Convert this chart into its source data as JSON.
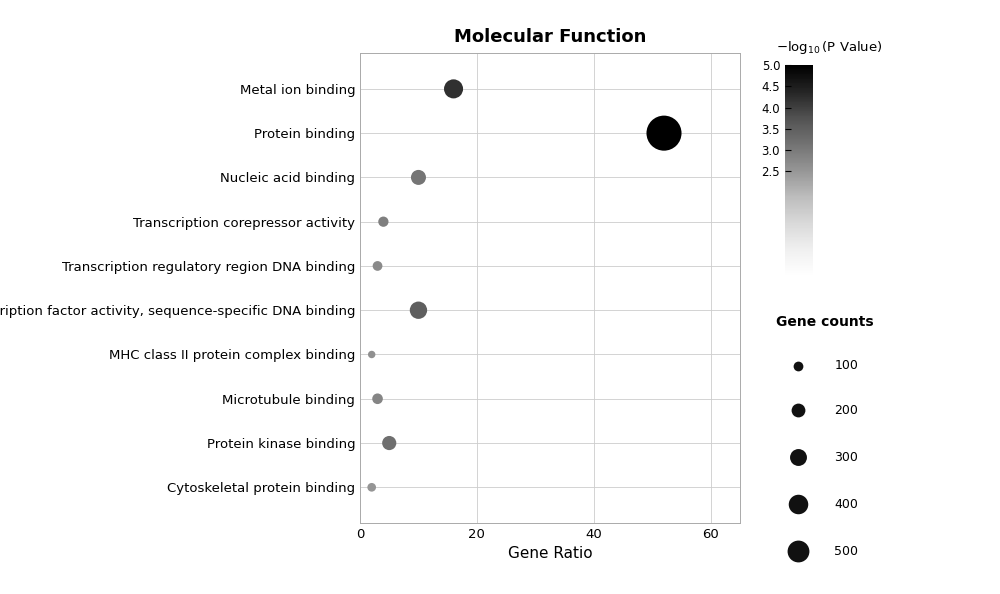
{
  "title": "Molecular Function",
  "xlabel": "Gene Ratio",
  "categories": [
    "Cytoskeletal protein binding",
    "Protein kinase binding",
    "Microtubule binding",
    "MHC class II protein complex binding",
    "Transcription factor activity, sequence-specific DNA binding",
    "Transcription regulatory region DNA binding",
    "Transcription corepressor activity",
    "Nucleic acid binding",
    "Protein binding",
    "Metal ion binding"
  ],
  "gene_ratio": [
    2,
    5,
    3,
    2,
    10,
    3,
    4,
    10,
    52,
    16
  ],
  "gene_counts": [
    30,
    80,
    45,
    22,
    120,
    38,
    42,
    90,
    490,
    145
  ],
  "neg_log_pvalue": [
    2.5,
    3.2,
    2.8,
    2.6,
    3.5,
    2.7,
    2.9,
    3.1,
    5.0,
    4.2
  ],
  "xlim": [
    0,
    65
  ],
  "xticks": [
    0,
    20,
    40,
    60
  ],
  "colorbar_vmin": 2.5,
  "colorbar_vmax": 5.0,
  "colorbar_ticks": [
    2.5,
    3.0,
    3.5,
    4.0,
    4.5,
    5.0
  ],
  "size_legend_counts": [
    100,
    200,
    300,
    400,
    500
  ],
  "dot_max_size": 650,
  "dot_max_count": 500,
  "colorbar_label": "-log₁₀(P Value)",
  "size_legend_title": "Gene counts"
}
